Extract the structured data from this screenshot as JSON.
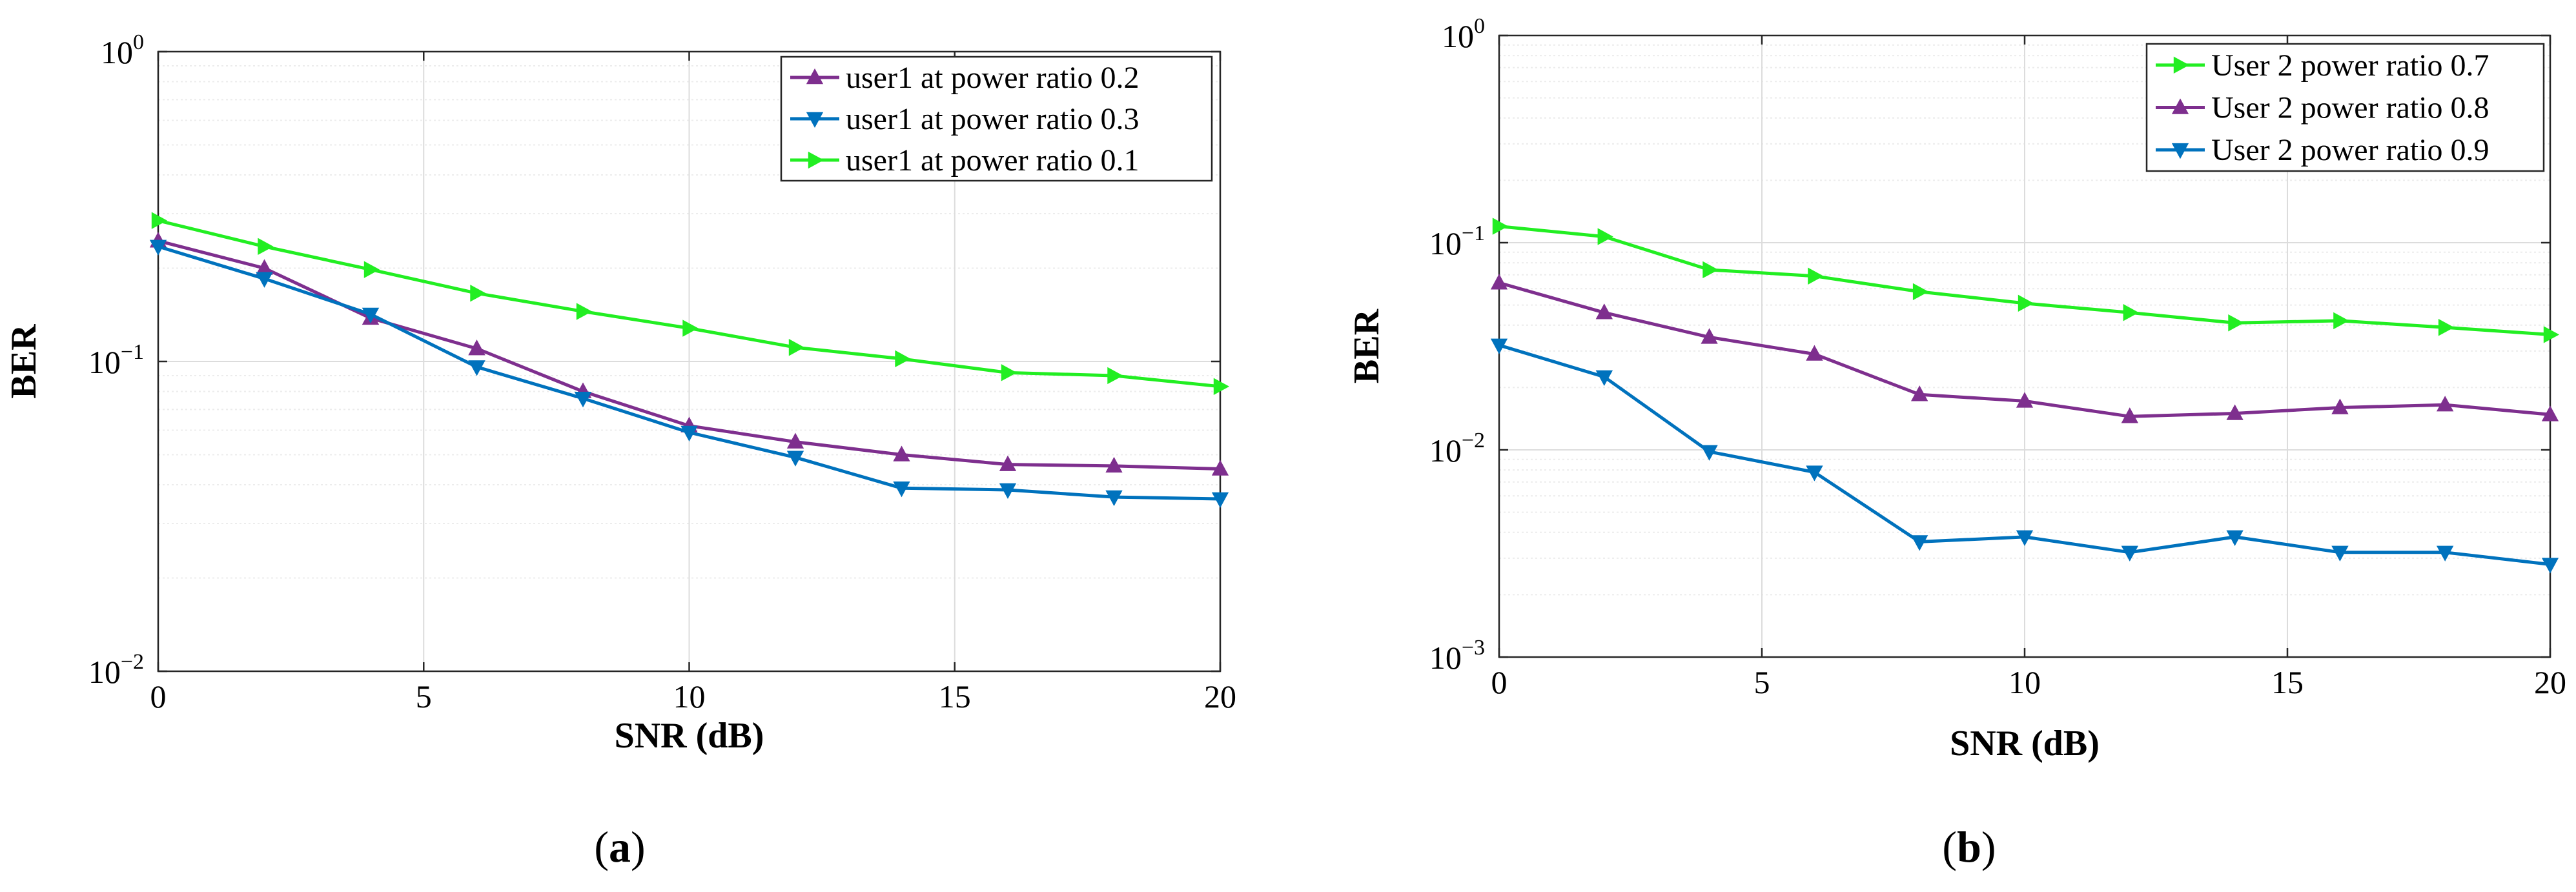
{
  "colors": {
    "purple": "#7E2F8E",
    "blue": "#0072BD",
    "green": "#22EE22",
    "axis": "#262626",
    "grid": "#DCDCDC",
    "minorGrid": "#ECECEC"
  },
  "chart_data": [
    {
      "panel_label": "(a)",
      "type": "line",
      "xscale": "linear",
      "yscale": "log",
      "title": "",
      "xlabel": "SNR (dB)",
      "ylabel": "BER",
      "xlim": [
        0,
        20
      ],
      "ylim": [
        0.01,
        1
      ],
      "xticks": [
        0,
        5,
        10,
        15,
        20
      ],
      "xtick_labels": [
        "0",
        "5",
        "10",
        "15",
        "20"
      ],
      "yticks": [
        0.01,
        0.1,
        1
      ],
      "ytick_labels": [
        {
          "base": "10",
          "exp": "−2"
        },
        {
          "base": "10",
          "exp": "−1"
        },
        {
          "base": "10",
          "exp": "0"
        }
      ],
      "grid": true,
      "legend_position": "top-right",
      "x": [
        0,
        2,
        4,
        6,
        8,
        10,
        12,
        14,
        16,
        18,
        20
      ],
      "series": [
        {
          "name": "user1 at power ratio 0.2",
          "color": "purple",
          "marker": "triangle-up",
          "values": [
            0.245,
            0.2,
            0.138,
            0.11,
            0.08,
            0.062,
            0.055,
            0.05,
            0.0465,
            0.046,
            0.045
          ]
        },
        {
          "name": "user1 at power ratio 0.3",
          "color": "blue",
          "marker": "triangle-down",
          "values": [
            0.235,
            0.185,
            0.142,
            0.096,
            0.076,
            0.059,
            0.049,
            0.039,
            0.0385,
            0.0365,
            0.036
          ]
        },
        {
          "name": "user1 at power ratio 0.1",
          "color": "green",
          "marker": "triangle-right",
          "values": [
            0.285,
            0.235,
            0.198,
            0.166,
            0.145,
            0.128,
            0.111,
            0.102,
            0.092,
            0.09,
            0.083
          ]
        }
      ]
    },
    {
      "panel_label": "(b)",
      "type": "line",
      "xscale": "linear",
      "yscale": "log",
      "title": "",
      "xlabel": "SNR (dB)",
      "ylabel": "BER",
      "xlim": [
        0,
        20
      ],
      "ylim": [
        0.001,
        1
      ],
      "xticks": [
        0,
        5,
        10,
        15,
        20
      ],
      "xtick_labels": [
        "0",
        "5",
        "10",
        "15",
        "20"
      ],
      "yticks": [
        0.001,
        0.01,
        0.1,
        1
      ],
      "ytick_labels": [
        {
          "base": "10",
          "exp": "−3"
        },
        {
          "base": "10",
          "exp": "−2"
        },
        {
          "base": "10",
          "exp": "−1"
        },
        {
          "base": "10",
          "exp": "0"
        }
      ],
      "grid": true,
      "legend_position": "top-right",
      "x": [
        0,
        2,
        4,
        6,
        8,
        10,
        12,
        14,
        16,
        18,
        20
      ],
      "series": [
        {
          "name": "User 2 power ratio 0.7",
          "color": "green",
          "marker": "triangle-right",
          "values": [
            0.12,
            0.107,
            0.074,
            0.069,
            0.058,
            0.051,
            0.046,
            0.041,
            0.042,
            0.039,
            0.036
          ]
        },
        {
          "name": "User 2 power ratio 0.8",
          "color": "purple",
          "marker": "triangle-up",
          "values": [
            0.064,
            0.046,
            0.035,
            0.029,
            0.0185,
            0.0172,
            0.0145,
            0.015,
            0.016,
            0.0165,
            0.0148
          ]
        },
        {
          "name": "User 2 power ratio 0.9",
          "color": "blue",
          "marker": "triangle-down",
          "values": [
            0.032,
            0.0225,
            0.0098,
            0.0078,
            0.0036,
            0.0038,
            0.0032,
            0.0038,
            0.0032,
            0.0032,
            0.0028
          ]
        }
      ]
    }
  ]
}
